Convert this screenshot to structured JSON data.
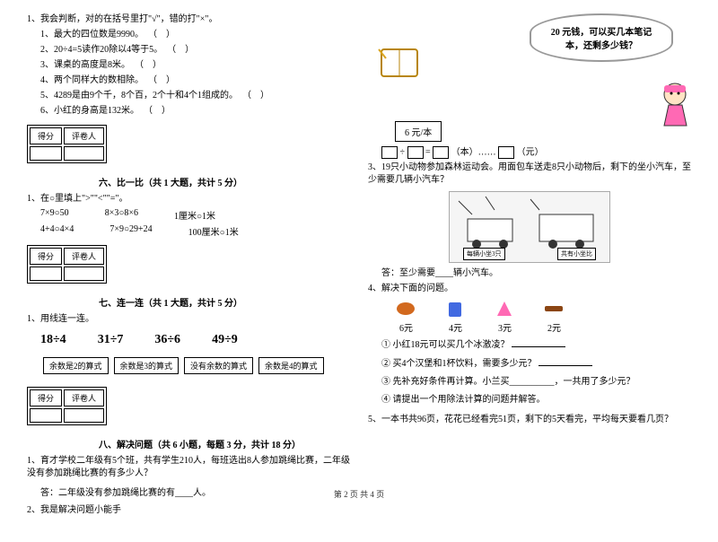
{
  "leftCol": {
    "q1": {
      "prompt": "1、我会判断，对的在括号里打\"√\"，错的打\"×\"。",
      "items": [
        "1、最大的四位数是9990。",
        "2、20÷4=5读作20除以4等于5。",
        "3、课桌的高度是8米。",
        "4、两个同样大的数相除。",
        "5、4289是由9个千，8个百，2个十和4个1组成的。",
        "6、小红的身高是132米。"
      ]
    },
    "scoreLabels": {
      "score": "得分",
      "grader": "评卷人"
    },
    "section6": {
      "title": "六、比一比（共 1 大题，共计 5 分）",
      "prompt": "1、在○里填上\">\"\"<\"\"=\"。",
      "row1": [
        "7×9○50",
        "8×3○8×6",
        "1厘米○1米"
      ],
      "row2": [
        "4+4○4×4",
        "7×9○29+24",
        "100厘米○1米"
      ]
    },
    "section7": {
      "title": "七、连一连（共 1 大题，共计 5 分）",
      "prompt": "1、用线连一连。",
      "formulas": [
        "18÷4",
        "31÷7",
        "36÷6",
        "49÷9"
      ],
      "boxes": [
        "余数是2的算式",
        "余数是3的算式",
        "没有余数的算式",
        "余数是4的算式"
      ]
    },
    "section8": {
      "title": "八、解决问题（共 6 小题，每题 3 分，共计 18 分）",
      "q1": "1、育才学校二年级有5个班，共有学生210人，每班选出8人参加跳绳比赛，二年级没有参加跳绳比赛的有多少人？",
      "q1ans": "答：二年级没有参加跳绳比赛的有____人。",
      "q2": "2、我是解决问题小能手"
    }
  },
  "rightCol": {
    "bubble": "20 元钱，可以买几本笔记本，还剩多少钱？",
    "priceLabel": "6 元/本",
    "eqLabels": {
      "ben": "（本）",
      "yuan": "（元）",
      "dots": "……"
    },
    "q3": "3、19只小动物参加森林运动会。用面包车送走8只小动物后，剩下的坐小汽车，至少需要几辆小汽车？",
    "illusLabels": {
      "left": "每辆小坐3只",
      "right": "共有小坐比"
    },
    "q3ans": "答：至少需要____辆小汽车。",
    "q4": "4、解决下面的问题。",
    "foods": [
      {
        "price": "6元",
        "color": "#d2691e"
      },
      {
        "price": "4元",
        "color": "#4169e1"
      },
      {
        "price": "3元",
        "color": "#ff69b4"
      },
      {
        "price": "2元",
        "color": "#8b4513"
      }
    ],
    "sub1": "① 小红18元可以买几个冰激凌？",
    "sub2": "② 买4个汉堡和1杯饮料，需要多少元？",
    "sub3": "③ 先补充好条件再计算。小兰买__________，一共用了多少元？",
    "sub4": "④ 请提出一个用除法计算的问题并解答。",
    "q5": "5、一本书共96页，花花已经看完51页，剩下的5天看完，平均每天要看几页？"
  },
  "footer": "第 2 页 共 4 页",
  "colors": {
    "bubble_border": "#999999",
    "illus_bg": "#f5f5f5"
  }
}
